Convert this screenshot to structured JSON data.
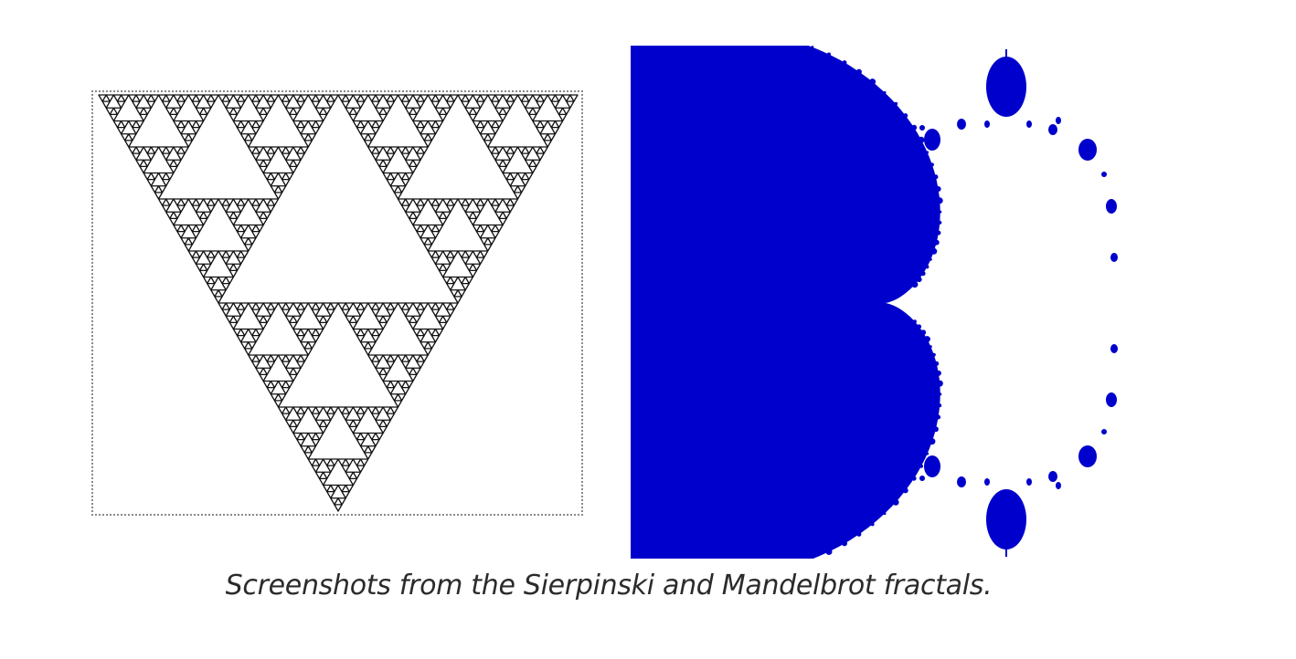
{
  "figure": {
    "caption": "Screenshots from the Sierpinski and Mandelbrot fractals."
  },
  "sierpinski": {
    "name": "Sierpinski",
    "depth": 6,
    "line_color": "#111111",
    "border_color": "#8a8a8a"
  },
  "mandelbrot": {
    "name": "Mandelbrot",
    "fill_color": "#0000cc"
  }
}
